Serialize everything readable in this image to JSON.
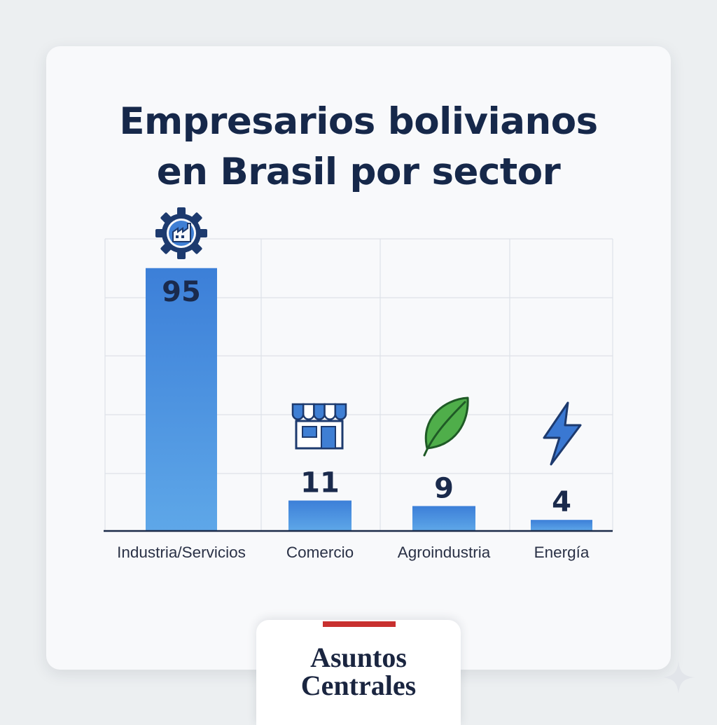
{
  "title_lines": [
    "Empresarios bolivianos",
    "en Brasil por sector"
  ],
  "chart_data": {
    "type": "bar",
    "title": "Empresarios bolivianos en Brasil por sector",
    "categories": [
      "Industria/Servicios",
      "Comercio",
      "Agroindustria",
      "Energía"
    ],
    "values": [
      95,
      11,
      9,
      4
    ],
    "icons": [
      "factory-gear-icon",
      "storefront-icon",
      "leaf-icon",
      "lightning-icon"
    ],
    "xlabel": "",
    "ylabel": "",
    "ylim": [
      0,
      100
    ],
    "grid": true,
    "bar_color": "#3f82d6"
  },
  "brand": {
    "lines": [
      "Asuntos",
      "Centrales"
    ],
    "accent": "#c8302f"
  }
}
